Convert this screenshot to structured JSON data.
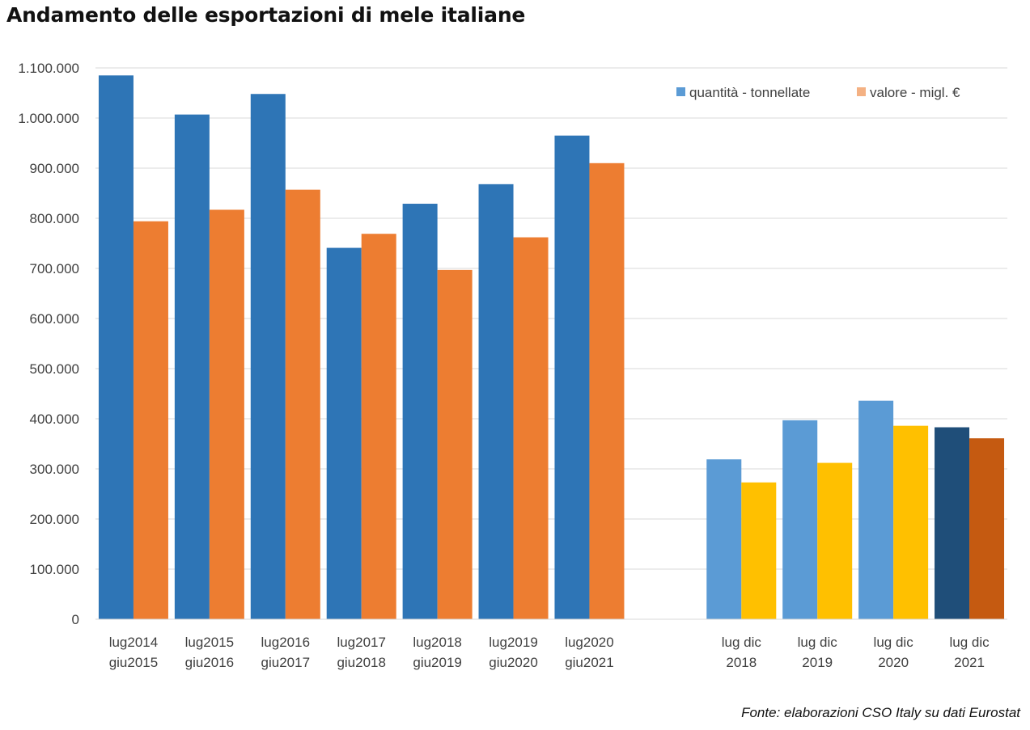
{
  "chart_data": {
    "type": "bar",
    "title": "Andamento delle esportazioni di mele italiane",
    "xlabel": "",
    "ylabel": "",
    "ylim": [
      0,
      1100000
    ],
    "yticks": [
      0,
      100000,
      200000,
      300000,
      400000,
      500000,
      600000,
      700000,
      800000,
      900000,
      1000000,
      1100000
    ],
    "ytick_labels": [
      "0",
      "100.000",
      "200.000",
      "300.000",
      "400.000",
      "500.000",
      "600.000",
      "700.000",
      "800.000",
      "900.000",
      "1.000.000",
      "1.100.000"
    ],
    "grid": true,
    "legend_position": "top-right",
    "categories": [
      [
        "lug2014",
        "giu2015"
      ],
      [
        "lug2015",
        "giu2016"
      ],
      [
        "lug2016",
        "giu2017"
      ],
      [
        "lug2017",
        "giu2018"
      ],
      [
        "lug2018",
        "giu2019"
      ],
      [
        "lug2019",
        "giu2020"
      ],
      [
        "lug2020",
        "giu2021"
      ],
      [
        "",
        ""
      ],
      [
        "lug dic",
        "2018"
      ],
      [
        "lug dic",
        "2019"
      ],
      [
        "lug dic",
        "2020"
      ],
      [
        "lug dic",
        "2021"
      ]
    ],
    "series": [
      {
        "name": "quantità - tonnellate",
        "legend_color": "#5b9bd5",
        "values": [
          1085000,
          1007000,
          1048000,
          741000,
          829000,
          868000,
          965000,
          null,
          319000,
          397000,
          436000,
          383000
        ],
        "colors": [
          "#2e75b6",
          "#2e75b6",
          "#2e75b6",
          "#2e75b6",
          "#2e75b6",
          "#2e75b6",
          "#2e75b6",
          "#2e75b6",
          "#5b9bd5",
          "#5b9bd5",
          "#5b9bd5",
          "#1f4e79"
        ]
      },
      {
        "name": "valore - migl. €",
        "legend_color": "#f4b183",
        "values": [
          794000,
          817000,
          857000,
          769000,
          697000,
          762000,
          910000,
          null,
          273000,
          312000,
          386000,
          361000
        ],
        "colors": [
          "#ed7d31",
          "#ed7d31",
          "#ed7d31",
          "#ed7d31",
          "#ed7d31",
          "#ed7d31",
          "#ed7d31",
          "#ed7d31",
          "#ffc000",
          "#ffc000",
          "#ffc000",
          "#c55a11"
        ]
      }
    ]
  },
  "footer": {
    "source": "Fonte: elaborazioni CSO Italy su dati Eurostat"
  }
}
